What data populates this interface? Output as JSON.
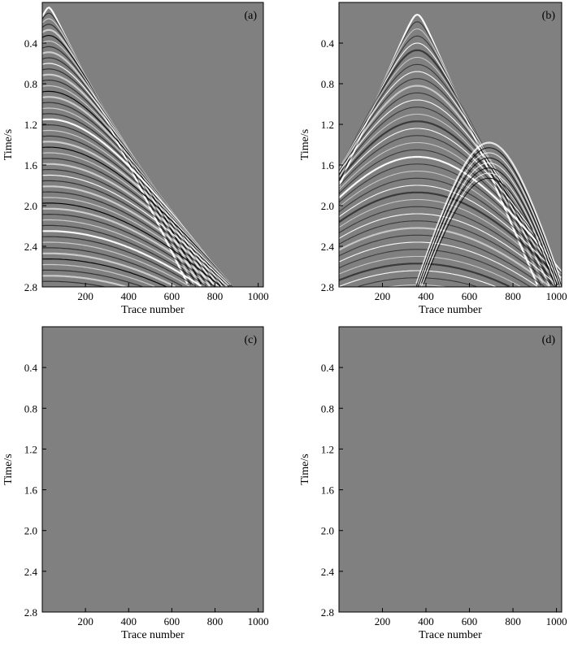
{
  "figure": {
    "background_color": "#808080",
    "wiggle_light_color": "#ffffff",
    "wiggle_dark_color": "#000000"
  },
  "chart_data": [
    {
      "type": "heatmap",
      "panel_label": "(a)",
      "description": "Seismic shot gather, events concentrated on left, dipping right",
      "xlabel": "Trace number",
      "ylabel": "Time/s",
      "xlim": [
        0,
        1024
      ],
      "ylim": [
        2.8,
        0.0
      ],
      "xticks": [
        200,
        400,
        600,
        800,
        1000
      ],
      "xtick_labels": [
        "200",
        "400",
        "600",
        "800",
        "1000"
      ],
      "yticks": [
        0.4,
        0.8,
        1.2,
        1.6,
        2.0,
        2.4,
        2.8
      ],
      "ytick_labels": [
        "0.4",
        "0.8",
        "1.2",
        "1.6",
        "2.0",
        "2.4",
        "2.8"
      ]
    },
    {
      "type": "heatmap",
      "panel_label": "(b)",
      "description": "Seismic shot gather, hyperbolic events with apex near trace 350",
      "xlabel": "Trace number",
      "ylabel": "Time/s",
      "xlim": [
        0,
        1024
      ],
      "ylim": [
        2.8,
        0.0
      ],
      "xticks": [
        200,
        400,
        600,
        800,
        1000
      ],
      "xtick_labels": [
        "200",
        "400",
        "600",
        "800",
        "1000"
      ],
      "yticks": [
        0.4,
        0.8,
        1.2,
        1.6,
        2.0,
        2.4,
        2.8
      ],
      "ytick_labels": [
        "0.4",
        "0.8",
        "1.2",
        "1.6",
        "2.0",
        "2.4",
        "2.8"
      ]
    },
    {
      "type": "heatmap",
      "panel_label": "(c)",
      "description": "Residual section, near-uniform gray noise",
      "xlabel": "Trace number",
      "ylabel": "Time/s",
      "xlim": [
        0,
        1024
      ],
      "ylim": [
        2.8,
        0.0
      ],
      "xticks": [
        200,
        400,
        600,
        800,
        1000
      ],
      "xtick_labels": [
        "200",
        "400",
        "600",
        "800",
        "1000"
      ],
      "yticks": [
        0.4,
        0.8,
        1.2,
        1.6,
        2.0,
        2.4,
        2.8
      ],
      "ytick_labels": [
        "0.4",
        "0.8",
        "1.2",
        "1.6",
        "2.0",
        "2.4",
        "2.8"
      ]
    },
    {
      "type": "heatmap",
      "panel_label": "(d)",
      "description": "Residual section, near-uniform gray noise",
      "xlabel": "Trace number",
      "ylabel": "Time/s",
      "xlim": [
        0,
        1024
      ],
      "ylim": [
        2.8,
        0.0
      ],
      "xticks": [
        200,
        400,
        600,
        800,
        1000
      ],
      "xtick_labels": [
        "200",
        "400",
        "600",
        "800",
        "1000"
      ],
      "yticks": [
        0.4,
        0.8,
        1.2,
        1.6,
        2.0,
        2.4,
        2.8
      ],
      "ytick_labels": [
        "0.4",
        "0.8",
        "1.2",
        "1.6",
        "2.0",
        "2.4",
        "2.8"
      ]
    }
  ]
}
